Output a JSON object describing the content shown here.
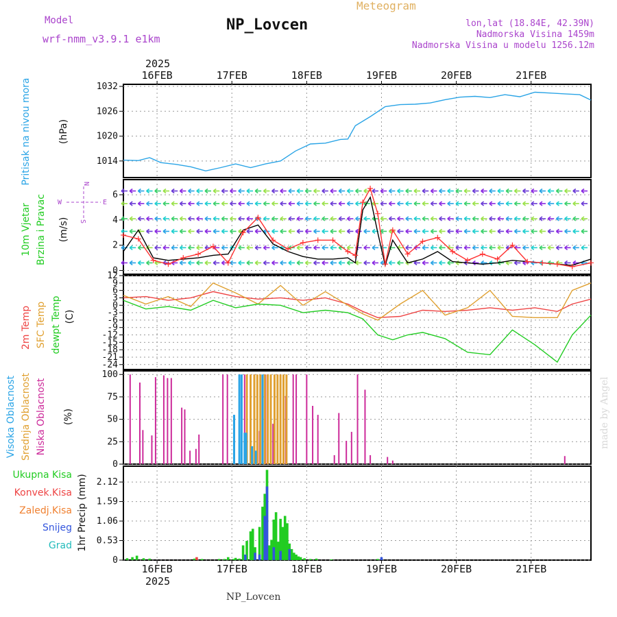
{
  "header": {
    "model_label": "Model",
    "model_name": "wrf-nmm_v3.9.1 e1km",
    "station": "NP_Lovcen",
    "meteogram": "Meteogram",
    "lonlat": "lon,lat (18.84E, 42.39N)",
    "altitude": "Nadmorska Visina 1459m",
    "model_altitude": "Nadmorska Visina u modelu 1256.12m",
    "year": "2025",
    "footer_station": "NP_Lovcen",
    "watermark": "made by Angel"
  },
  "colors": {
    "pressure": "#2aa4e6",
    "wind_obs": "#ff3030",
    "wind_model": "#000000",
    "wind_label": "#22cc22",
    "t2m": "#ee4444",
    "sfc": "#e0a030",
    "dewpt": "#22cc22",
    "cloud_high": "#2aa4e6",
    "cloud_mid": "#e0a030",
    "cloud_low": "#cc2a9a",
    "precip_total": "#22cc22",
    "precip_conv": "#ee4444",
    "precip_snow": "#3355dd",
    "grid": "#999999",
    "purple_text": "#aa44cc"
  },
  "chart_data": [
    {
      "type": "line",
      "panel": "pressure",
      "ylabel_main": "Pritisak na nivou mora",
      "ylabel_unit": "(hPa)",
      "x_ticks": [
        "16FEB",
        "17FEB",
        "18FEB",
        "19FEB",
        "20FEB",
        "21FEB"
      ],
      "yticks": [
        "1014",
        "1020",
        "1026",
        "1032"
      ],
      "ylim": [
        1010,
        1032.5
      ],
      "xlim": [
        0,
        6.25
      ],
      "series": [
        {
          "x": [
            0,
            0.2,
            0.35,
            0.5,
            0.7,
            0.9,
            1.1,
            1.3,
            1.5,
            1.7,
            1.9,
            2.1,
            2.3,
            2.5,
            2.7,
            2.9,
            3.0,
            3.1,
            3.3,
            3.5,
            3.7,
            3.9,
            4.1,
            4.3,
            4.5,
            4.7,
            4.9,
            5.1,
            5.3,
            5.5,
            5.7,
            5.9,
            6.1,
            6.25
          ],
          "values": [
            1014.2,
            1014.1,
            1014.8,
            1013.6,
            1013.2,
            1012.6,
            1011.6,
            1012.4,
            1013.3,
            1012.4,
            1013.3,
            1014.0,
            1016.4,
            1018.1,
            1018.3,
            1019.2,
            1019.3,
            1022.5,
            1024.7,
            1027.1,
            1027.6,
            1027.7,
            1028.0,
            1028.8,
            1029.4,
            1029.6,
            1029.3,
            1030.0,
            1029.5,
            1030.6,
            1030.4,
            1030.2,
            1030.0,
            1028.7
          ]
        }
      ]
    },
    {
      "type": "line",
      "panel": "wind",
      "ylabel_main": "10m Vjetar",
      "ylabel_sub": "Brzina i Pravac",
      "ylabel_unit": "(m/s)",
      "compass": {
        "n": "N",
        "w": "W",
        "e": "E",
        "s": "S"
      },
      "yticks": [
        "0",
        "2",
        "4",
        "6"
      ],
      "ylim": [
        -0.3,
        7.2
      ],
      "xlim": [
        0,
        6.25
      ],
      "arrow_levels": [
        0.6,
        1.8,
        3.1,
        4.1,
        5.3,
        6.3
      ],
      "series": [
        {
          "name": "model",
          "x": [
            0,
            0.2,
            0.4,
            0.6,
            0.8,
            1.0,
            1.2,
            1.4,
            1.6,
            1.8,
            2.0,
            2.2,
            2.4,
            2.6,
            2.8,
            3.0,
            3.1,
            3.2,
            3.3,
            3.4,
            3.5,
            3.6,
            3.8,
            4.0,
            4.2,
            4.4,
            4.6,
            4.8,
            5.0,
            5.2,
            5.4,
            5.6,
            5.8,
            6.0,
            6.25
          ],
          "values": [
            1.5,
            3.2,
            1.0,
            0.8,
            0.9,
            1.0,
            1.2,
            1.3,
            3.2,
            3.6,
            2.1,
            1.5,
            1.1,
            0.9,
            0.9,
            1.0,
            0.6,
            4.8,
            5.8,
            3.0,
            0.4,
            2.4,
            0.6,
            0.9,
            1.5,
            0.7,
            0.6,
            0.5,
            0.6,
            0.8,
            0.7,
            0.6,
            0.5,
            0.4,
            0.9
          ]
        },
        {
          "name": "obs",
          "x": [
            0,
            0.2,
            0.4,
            0.6,
            0.8,
            1.0,
            1.2,
            1.4,
            1.6,
            1.8,
            2.0,
            2.2,
            2.4,
            2.6,
            2.8,
            3.0,
            3.1,
            3.2,
            3.3,
            3.4,
            3.5,
            3.6,
            3.8,
            4.0,
            4.2,
            4.4,
            4.6,
            4.8,
            5.0,
            5.2,
            5.4,
            5.6,
            5.8,
            6.0,
            6.25
          ],
          "values": [
            2.8,
            2.5,
            0.8,
            0.5,
            1.0,
            1.3,
            1.9,
            0.6,
            3.0,
            4.2,
            2.4,
            1.7,
            2.2,
            2.4,
            2.4,
            1.5,
            1.2,
            5.4,
            6.5,
            4.5,
            0.5,
            3.2,
            1.3,
            2.3,
            2.6,
            1.5,
            0.8,
            1.3,
            0.9,
            2.0,
            0.7,
            0.6,
            0.5,
            0.3,
            0.6
          ]
        }
      ]
    },
    {
      "type": "line",
      "panel": "temperature",
      "ylabel_main": "2m Temp",
      "ylabel_sub": "SFC Temp",
      "ylabel_sub2": "dewpt Temp",
      "ylabel_unit": "(C)",
      "yticks": [
        "12",
        "9",
        "6",
        "3",
        "0",
        "-3",
        "-6",
        "-9",
        "-12",
        "-15",
        "-18",
        "-21",
        "-24"
      ],
      "ylim": [
        -26,
        12
      ],
      "xlim": [
        0,
        6.25
      ],
      "series": [
        {
          "name": "2m Temp",
          "x": [
            0,
            0.3,
            0.6,
            0.9,
            1.2,
            1.5,
            1.8,
            2.1,
            2.4,
            2.7,
            3.0,
            3.2,
            3.4,
            3.7,
            4.0,
            4.3,
            4.6,
            4.9,
            5.2,
            5.5,
            5.8,
            6.0,
            6.25
          ],
          "values": [
            3.0,
            3.5,
            2.0,
            3.0,
            5.5,
            3.5,
            2.5,
            3.0,
            2.0,
            3.0,
            0.5,
            -2.5,
            -5.0,
            -4.5,
            -2.0,
            -2.5,
            -2.0,
            -1.0,
            -2.0,
            -1.0,
            -2.5,
            0.5,
            2.5
          ]
        },
        {
          "name": "SFC Temp",
          "x": [
            0,
            0.3,
            0.6,
            0.9,
            1.2,
            1.5,
            1.8,
            2.1,
            2.4,
            2.7,
            3.0,
            3.2,
            3.4,
            3.7,
            4.0,
            4.3,
            4.6,
            4.9,
            5.2,
            5.5,
            5.8,
            6.0,
            6.25
          ],
          "values": [
            4.0,
            0.5,
            3.5,
            -0.5,
            9.0,
            5.0,
            0.5,
            8.0,
            0.0,
            5.5,
            0.0,
            -3.5,
            -6.0,
            0.5,
            6.0,
            -4.0,
            -1.0,
            6.0,
            -4.5,
            -5.0,
            -5.0,
            6.0,
            9.0
          ]
        },
        {
          "name": "dewpt Temp",
          "x": [
            0,
            0.3,
            0.6,
            0.9,
            1.2,
            1.5,
            1.8,
            2.1,
            2.4,
            2.7,
            3.0,
            3.2,
            3.4,
            3.6,
            3.8,
            4.0,
            4.3,
            4.6,
            4.9,
            5.2,
            5.5,
            5.8,
            6.0,
            6.25
          ],
          "values": [
            2.0,
            -1.5,
            -0.5,
            -2.0,
            2.0,
            -1.0,
            0.5,
            0.0,
            -3.0,
            -2.0,
            -3.0,
            -5.5,
            -12.0,
            -14.0,
            -12.0,
            -11.0,
            -13.5,
            -19.0,
            -20.0,
            -10.0,
            -16.0,
            -23.0,
            -12.0,
            -4.0
          ]
        }
      ]
    },
    {
      "type": "bar",
      "panel": "clouds",
      "ylabel_main": "Visoka Oblacnost",
      "ylabel_sub": "Srednja Oblacnost",
      "ylabel_sub2": "Niska Oblacnost",
      "ylabel_unit": "(%)",
      "yticks": [
        "0",
        "25",
        "50",
        "75",
        "100"
      ],
      "ylim": [
        0,
        104
      ],
      "xlim": [
        0,
        6.25
      ],
      "series": [
        {
          "name": "Niska Oblacnost",
          "x": [
            0.09,
            0.22,
            0.26,
            0.38,
            0.43,
            0.54,
            0.59,
            0.64,
            0.78,
            0.82,
            0.89,
            0.97,
            1.01,
            1.33,
            1.39,
            1.48,
            1.55,
            1.62,
            1.65,
            1.75,
            1.82,
            1.9,
            2.0,
            2.06,
            2.1,
            2.17,
            2.27,
            2.31,
            2.45,
            2.53,
            2.6,
            2.82,
            2.88,
            2.98,
            3.05,
            3.13,
            3.23,
            3.3,
            3.53,
            3.6,
            5.9
          ],
          "values": [
            100,
            91,
            38,
            32,
            97,
            99,
            96,
            96,
            63,
            61,
            15,
            17,
            33,
            100,
            100,
            54,
            35,
            100,
            85,
            100,
            37,
            100,
            45,
            100,
            100,
            76,
            100,
            100,
            100,
            65,
            55,
            10,
            57,
            26,
            36,
            100,
            83,
            10,
            8,
            4,
            9
          ]
        },
        {
          "name": "Srednja Oblacnost",
          "x": [
            1.65,
            1.7,
            1.75,
            1.79,
            1.83,
            1.89,
            1.93,
            1.97,
            2.02,
            2.06,
            2.1,
            2.14,
            2.18
          ],
          "values": [
            100,
            100,
            100,
            100,
            100,
            100,
            100,
            100,
            100,
            100,
            100,
            100,
            100
          ]
        },
        {
          "name": "Visoka Oblacnost",
          "x": [
            1.48,
            1.55,
            1.58,
            1.62,
            1.64,
            1.72,
            1.77,
            1.86
          ],
          "values": [
            55,
            100,
            100,
            35,
            35,
            20,
            15,
            100
          ]
        }
      ]
    },
    {
      "type": "bar",
      "panel": "precip",
      "ylabel_main": "1hr Precip",
      "ylabel_unit": "(mm)",
      "legend": [
        "Ukupna Kisa",
        "Konvek.Kisa",
        "Zaledj.Kisa",
        "Snijeg",
        "Grad"
      ],
      "x_ticks": [
        "16FEB",
        "17FEB",
        "18FEB",
        "19FEB",
        "20FEB",
        "21FEB"
      ],
      "yticks": [
        "0",
        "0.53",
        "1.06",
        "1.59",
        "2.12"
      ],
      "ylim": [
        0,
        2.55
      ],
      "xlim": [
        0,
        6.25
      ],
      "series": [
        {
          "name": "Ukupna Kisa",
          "x": [
            0.05,
            0.12,
            0.18,
            0.27,
            0.35,
            0.95,
            1.05,
            1.28,
            1.35,
            1.4,
            1.47,
            1.5,
            1.55,
            1.6,
            1.65,
            1.7,
            1.73,
            1.76,
            1.82,
            1.86,
            1.89,
            1.92,
            1.95,
            1.98,
            2.01,
            2.04,
            2.07,
            2.1,
            2.13,
            2.16,
            2.19,
            2.22,
            2.25,
            2.28,
            2.31,
            2.34,
            2.37,
            2.42,
            2.5,
            2.58,
            2.78,
            3.4
          ],
          "values": [
            0.05,
            0.08,
            0.12,
            0.05,
            0.04,
            0.04,
            0.03,
            0.03,
            0.03,
            0.08,
            0.03,
            0.06,
            0.04,
            0.4,
            0.52,
            0.78,
            0.85,
            0.35,
            0.9,
            1.45,
            1.8,
            2.45,
            0.4,
            0.55,
            1.1,
            1.3,
            0.5,
            1.12,
            0.9,
            1.2,
            1.0,
            0.45,
            0.3,
            0.2,
            0.15,
            0.1,
            0.08,
            0.05,
            0.03,
            0.04,
            0.02,
            0.03
          ]
        },
        {
          "name": "Snijeg",
          "x": [
            1.63,
            1.76,
            1.82,
            1.89,
            1.92,
            2.01,
            2.1,
            2.22,
            3.45
          ],
          "values": [
            0.15,
            0.2,
            0.15,
            1.2,
            2.0,
            0.35,
            0.25,
            0.3,
            0.08
          ]
        },
        {
          "name": "Konvek.Kisa",
          "x": [
            0.98
          ],
          "values": [
            0.08
          ]
        }
      ]
    }
  ]
}
